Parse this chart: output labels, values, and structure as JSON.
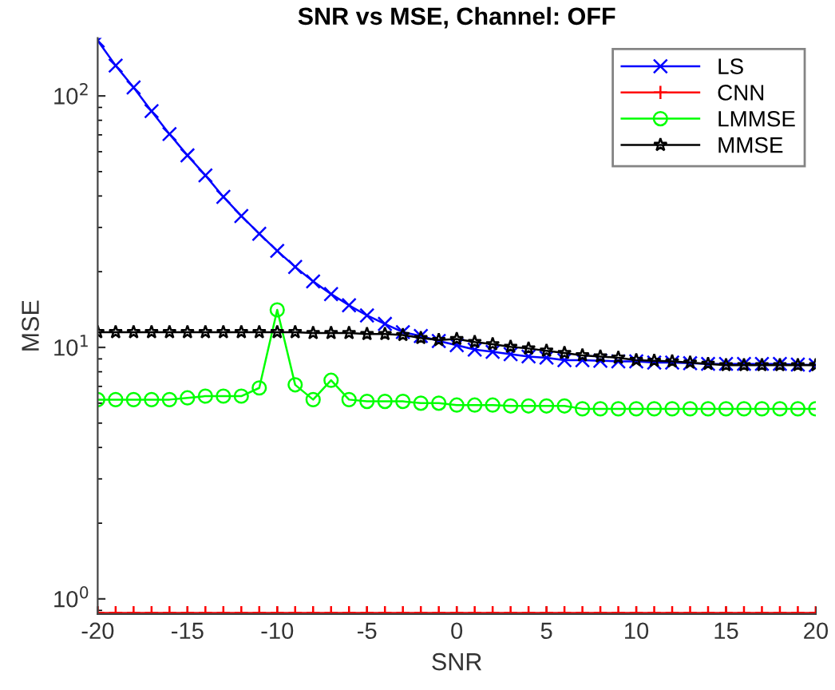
{
  "chart_data": {
    "type": "line",
    "title": "SNR vs MSE, Channel: OFF",
    "xlabel": "SNR",
    "ylabel": "MSE",
    "x": [
      -20,
      -19,
      -18,
      -17,
      -16,
      -15,
      -14,
      -13,
      -12,
      -11,
      -10,
      -9,
      -8,
      -7,
      -6,
      -5,
      -4,
      -3,
      -2,
      -1,
      0,
      1,
      2,
      3,
      4,
      5,
      6,
      7,
      8,
      9,
      10,
      11,
      12,
      13,
      14,
      15,
      16,
      17,
      18,
      19,
      20
    ],
    "series": [
      {
        "name": "LS",
        "color": "#0000ff",
        "marker": "cross",
        "values": [
          166,
          132,
          108,
          87,
          70.5,
          58,
          48.3,
          39.7,
          33.3,
          28.3,
          24.2,
          20.9,
          18.3,
          16.3,
          14.7,
          13.4,
          12.4,
          11.5,
          11.1,
          10.6,
          10.2,
          9.8,
          9.6,
          9.4,
          9.2,
          9.1,
          8.9,
          8.9,
          8.85,
          8.8,
          8.8,
          8.7,
          8.7,
          8.65,
          8.6,
          8.6,
          8.6,
          8.6,
          8.6,
          8.55,
          8.5
        ]
      },
      {
        "name": "CNN",
        "color": "#ff0000",
        "marker": "plus",
        "values": [
          0.88,
          0.88,
          0.88,
          0.88,
          0.88,
          0.88,
          0.88,
          0.88,
          0.88,
          0.88,
          0.88,
          0.88,
          0.88,
          0.88,
          0.88,
          0.88,
          0.88,
          0.88,
          0.88,
          0.88,
          0.88,
          0.88,
          0.88,
          0.88,
          0.88,
          0.88,
          0.88,
          0.88,
          0.88,
          0.88,
          0.88,
          0.88,
          0.88,
          0.88,
          0.88,
          0.88,
          0.88,
          0.88,
          0.88,
          0.88,
          0.88
        ]
      },
      {
        "name": "LMMSE",
        "color": "#00ff00",
        "marker": "circle",
        "values": [
          6.2,
          6.2,
          6.2,
          6.2,
          6.2,
          6.3,
          6.4,
          6.4,
          6.4,
          6.9,
          14.1,
          7.1,
          6.2,
          7.4,
          6.2,
          6.1,
          6.1,
          6.1,
          6.0,
          6.0,
          5.9,
          5.9,
          5.9,
          5.85,
          5.85,
          5.85,
          5.85,
          5.7,
          5.7,
          5.7,
          5.7,
          5.7,
          5.7,
          5.7,
          5.7,
          5.7,
          5.7,
          5.7,
          5.7,
          5.7,
          5.7
        ]
      },
      {
        "name": "MMSE",
        "color": "#000000",
        "marker": "star",
        "values": [
          11.5,
          11.5,
          11.5,
          11.5,
          11.5,
          11.5,
          11.5,
          11.5,
          11.5,
          11.5,
          11.5,
          11.5,
          11.4,
          11.4,
          11.4,
          11.3,
          11.3,
          11.2,
          10.9,
          10.7,
          10.8,
          10.5,
          10.3,
          10.05,
          9.9,
          9.7,
          9.5,
          9.3,
          9.2,
          9.1,
          8.9,
          8.85,
          8.8,
          8.7,
          8.6,
          8.5,
          8.5,
          8.5,
          8.5,
          8.5,
          8.5
        ]
      }
    ],
    "log": "y",
    "xlim": [
      -20,
      20
    ],
    "xticks": [
      -20,
      -15,
      -10,
      -5,
      0,
      5,
      10,
      15,
      20
    ],
    "ylim": [
      0.87,
      170
    ],
    "yticks": [
      {
        "value": 1,
        "label": "10$^{0}$"
      },
      {
        "value": 10,
        "label": "10$^{1}$"
      },
      {
        "value": 100,
        "label": "10$^{2}$"
      }
    ],
    "grid": false,
    "legend": "top right",
    "line_style": "solid"
  }
}
